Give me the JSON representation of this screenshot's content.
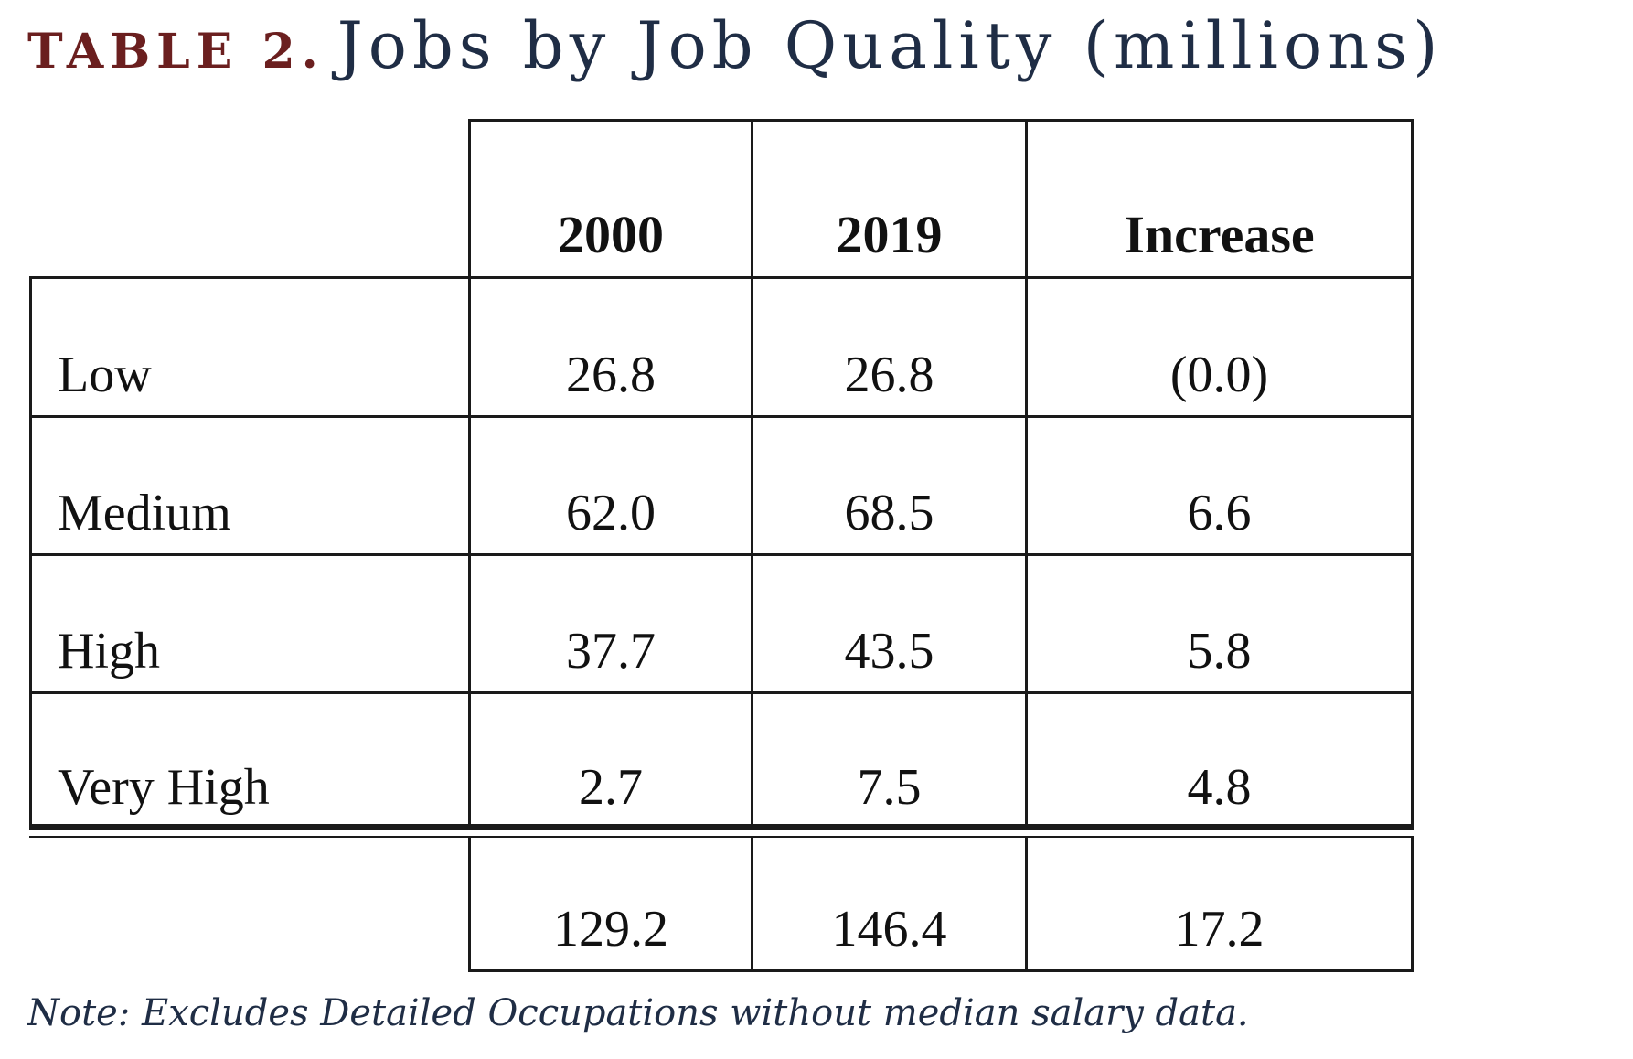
{
  "title": {
    "label": "TABLE 2.",
    "text": "Jobs by Job Quality (millions)"
  },
  "table": {
    "headers": [
      "2000",
      "2019",
      "Increase"
    ],
    "rows": [
      {
        "label": "Low",
        "v2000": "26.8",
        "v2019": "26.8",
        "increase": "(0.0)"
      },
      {
        "label": "Medium",
        "v2000": "62.0",
        "v2019": "68.5",
        "increase": "6.6"
      },
      {
        "label": "High",
        "v2000": "37.7",
        "v2019": "43.5",
        "increase": "5.8"
      },
      {
        "label": "Very High",
        "v2000": "2.7",
        "v2019": "7.5",
        "increase": "4.8"
      }
    ],
    "total": {
      "v2000": "129.2",
      "v2019": "146.4",
      "increase": "17.2"
    }
  },
  "note": "Note: Excludes Detailed Occupations without median salary data."
}
